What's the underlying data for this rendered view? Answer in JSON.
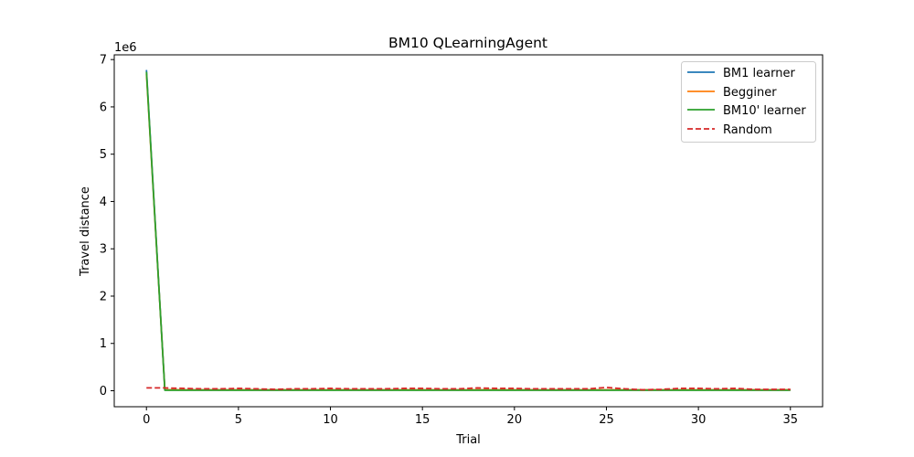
{
  "chart_data": {
    "type": "line",
    "title": "BM10  QLearningAgent",
    "xlabel": "Trial",
    "ylabel": "Travel distance",
    "y_offset_text": "1e6",
    "x_ticks": [
      0,
      5,
      10,
      15,
      20,
      25,
      30,
      35
    ],
    "y_ticks": [
      0,
      1,
      2,
      3,
      4,
      5,
      6,
      7
    ],
    "xlim": [
      -1.75,
      36.75
    ],
    "ylim": [
      -0.338,
      7.1
    ],
    "grid": false,
    "legend_position": "upper right",
    "x": [
      0,
      1,
      2,
      3,
      4,
      5,
      6,
      7,
      8,
      9,
      10,
      11,
      12,
      13,
      14,
      15,
      16,
      17,
      18,
      19,
      20,
      21,
      22,
      23,
      24,
      25,
      26,
      27,
      28,
      29,
      30,
      31,
      32,
      33,
      34,
      35
    ],
    "series": [
      {
        "name": "BM1 learner",
        "color": "#1f77b4",
        "dash": "solid",
        "values": [
          6.78,
          0.02,
          0.02,
          0.02,
          0.02,
          0.02,
          0.02,
          0.02,
          0.02,
          0.02,
          0.02,
          0.02,
          0.02,
          0.02,
          0.02,
          0.02,
          0.02,
          0.02,
          0.02,
          0.02,
          0.02,
          0.02,
          0.02,
          0.02,
          0.02,
          0.02,
          0.02,
          0.02,
          0.02,
          0.02,
          0.02,
          0.02,
          0.02,
          0.02,
          0.02,
          0.02
        ]
      },
      {
        "name": "Begginer",
        "color": "#ff7f0e",
        "dash": "solid",
        "values": [
          6.7,
          0.02,
          0.02,
          0.02,
          0.02,
          0.02,
          0.02,
          0.02,
          0.02,
          0.02,
          0.02,
          0.02,
          0.02,
          0.02,
          0.02,
          0.02,
          0.02,
          0.02,
          0.02,
          0.02,
          0.02,
          0.02,
          0.02,
          0.02,
          0.02,
          0.02,
          0.02,
          0.02,
          0.02,
          0.02,
          0.02,
          0.02,
          0.02,
          0.02,
          0.02,
          0.02
        ]
      },
      {
        "name": "BM10' learner",
        "color": "#2ca02c",
        "dash": "solid",
        "values": [
          6.74,
          0.01,
          0.01,
          0.01,
          0.01,
          0.01,
          0.01,
          0.01,
          0.01,
          0.01,
          0.01,
          0.01,
          0.01,
          0.01,
          0.01,
          0.01,
          0.01,
          0.01,
          0.01,
          0.01,
          0.01,
          0.01,
          0.01,
          0.01,
          0.01,
          0.01,
          0.01,
          0.01,
          0.01,
          0.01,
          0.01,
          0.01,
          0.01,
          0.01,
          0.01,
          0.01
        ]
      },
      {
        "name": "Random",
        "color": "#d62728",
        "dash": "dashed",
        "values": [
          0.06,
          0.06,
          0.05,
          0.04,
          0.04,
          0.05,
          0.04,
          0.03,
          0.04,
          0.04,
          0.05,
          0.04,
          0.04,
          0.04,
          0.05,
          0.05,
          0.04,
          0.04,
          0.06,
          0.05,
          0.05,
          0.04,
          0.04,
          0.04,
          0.04,
          0.07,
          0.04,
          0.02,
          0.03,
          0.05,
          0.05,
          0.04,
          0.05,
          0.03,
          0.03,
          0.03
        ]
      }
    ]
  }
}
